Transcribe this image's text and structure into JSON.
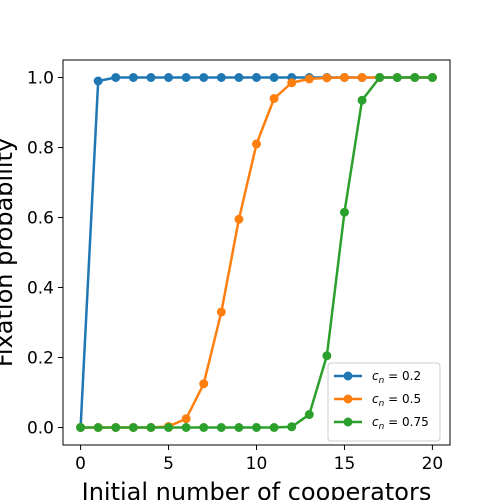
{
  "chart_data": {
    "type": "line",
    "title": "",
    "xlabel": "Initial number of cooperators",
    "ylabel": "Fixation probability",
    "xlim": [
      -1,
      21
    ],
    "ylim": [
      -0.05,
      1.05
    ],
    "xticks": [
      "0",
      "5",
      "10",
      "15",
      "20"
    ],
    "yticks": [
      "0.0",
      "0.2",
      "0.4",
      "0.6",
      "0.8",
      "1.0"
    ],
    "grid": false,
    "legend_position": "lower-right",
    "x": [
      0,
      1,
      2,
      3,
      4,
      5,
      6,
      7,
      8,
      9,
      10,
      11,
      12,
      13,
      14,
      15,
      16,
      17,
      18,
      19,
      20
    ],
    "series": [
      {
        "name": "c_n = 0.2",
        "legend_var": "c",
        "legend_sub": "n",
        "legend_val": " = 0.2",
        "color": "#1f77b4",
        "values": [
          0,
          0.99,
          1,
          1,
          1,
          1,
          1,
          1,
          1,
          1,
          1,
          1,
          1,
          1,
          1,
          1,
          1,
          1,
          1,
          1,
          1
        ]
      },
      {
        "name": "c_n = 0.5",
        "legend_var": "c",
        "legend_sub": "n",
        "legend_val": " = 0.5",
        "color": "#ff7f0e",
        "values": [
          0,
          0,
          0,
          0,
          0,
          0.003,
          0.025,
          0.125,
          0.33,
          0.595,
          0.81,
          0.94,
          0.985,
          0.996,
          0.999,
          1,
          1,
          1,
          1,
          1,
          1
        ]
      },
      {
        "name": "c_n = 0.75",
        "legend_var": "c",
        "legend_sub": "n",
        "legend_val": " = 0.75",
        "color": "#2ca02c",
        "values": [
          0,
          0,
          0,
          0,
          0,
          0,
          0,
          0,
          0,
          0,
          0,
          0,
          0.002,
          0.037,
          0.205,
          0.615,
          0.935,
          1,
          1,
          1,
          1
        ]
      }
    ]
  }
}
